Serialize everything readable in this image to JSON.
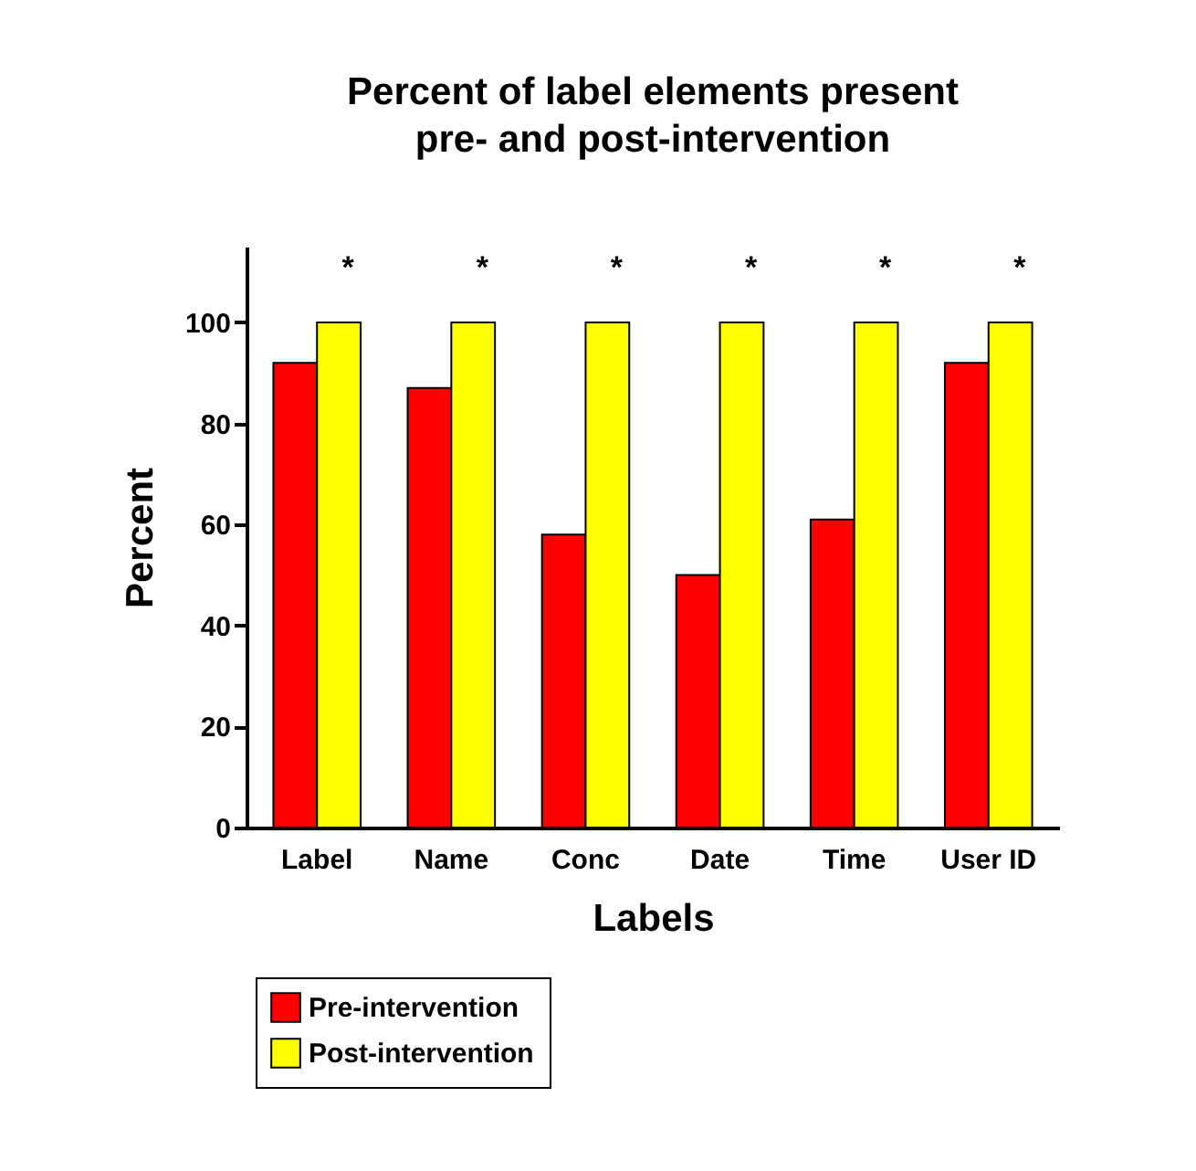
{
  "chart_data": {
    "type": "bar",
    "title": "Percent of label elements present\npre- and post-intervention",
    "xlabel": "Labels",
    "ylabel": "Percent",
    "categories": [
      "Label",
      "Name",
      "Conc",
      "Date",
      "Time",
      "User ID"
    ],
    "series": [
      {
        "name": "Pre-intervention",
        "color": "#ff0000",
        "values": [
          92,
          87,
          58,
          50,
          61,
          92
        ]
      },
      {
        "name": "Post-intervention",
        "color": "#ffff00",
        "values": [
          100,
          100,
          100,
          100,
          100,
          100
        ]
      }
    ],
    "ylim": [
      0,
      115
    ],
    "yticks": [
      0,
      20,
      40,
      60,
      80,
      100
    ],
    "grid": false,
    "legend": "bottom left",
    "annotations": [
      "*",
      "*",
      "*",
      "*",
      "*",
      "*"
    ]
  }
}
